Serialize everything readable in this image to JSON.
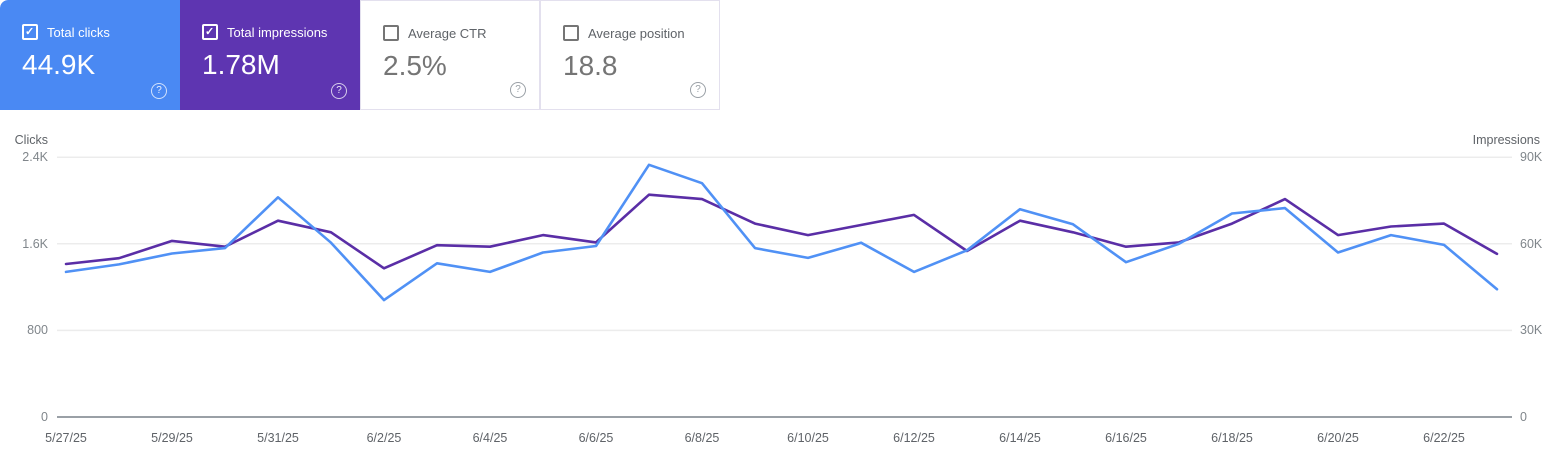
{
  "cards": [
    {
      "label": "Total clicks",
      "value": "44.9K",
      "checked": true,
      "bg_color": "#4a89f3",
      "text_color": "#ffffff"
    },
    {
      "label": "Total impressions",
      "value": "1.78M",
      "checked": true,
      "bg_color": "#5e35b1",
      "text_color": "#ffffff"
    },
    {
      "label": "Average CTR",
      "value": "2.5%",
      "checked": false,
      "bg_color": "#ffffff",
      "text_color": "#757575"
    },
    {
      "label": "Average position",
      "value": "18.8",
      "checked": false,
      "bg_color": "#ffffff",
      "text_color": "#757575"
    }
  ],
  "chart_data": {
    "type": "line",
    "x": [
      "5/27/25",
      "5/28/25",
      "5/29/25",
      "5/30/25",
      "5/31/25",
      "6/1/25",
      "6/2/25",
      "6/3/25",
      "6/4/25",
      "6/5/25",
      "6/6/25",
      "6/7/25",
      "6/8/25",
      "6/9/25",
      "6/10/25",
      "6/11/25",
      "6/12/25",
      "6/13/25",
      "6/14/25",
      "6/15/25",
      "6/16/25",
      "6/17/25",
      "6/18/25",
      "6/19/25",
      "6/20/25",
      "6/21/25",
      "6/22/25",
      "6/23/25"
    ],
    "x_tick_every": 2,
    "series": [
      {
        "name": "Clicks",
        "axis": "left",
        "color": "#5091f5",
        "values": [
          1340,
          1410,
          1510,
          1560,
          2030,
          1610,
          1080,
          1420,
          1340,
          1520,
          1580,
          2330,
          2160,
          1560,
          1470,
          1610,
          1340,
          1540,
          1920,
          1780,
          1430,
          1600,
          1880,
          1930,
          1520,
          1680,
          1590,
          1180
        ]
      },
      {
        "name": "Impressions",
        "axis": "right",
        "color": "#5a2ea6",
        "values": [
          53000,
          55000,
          61000,
          59000,
          68000,
          64000,
          51500,
          59500,
          59000,
          63000,
          60500,
          77000,
          75500,
          67000,
          63000,
          66500,
          70000,
          57500,
          68000,
          64000,
          59000,
          60500,
          67000,
          75500,
          63000,
          66000,
          67000,
          56500
        ]
      }
    ],
    "left_axis": {
      "title": "Clicks",
      "ticks": [
        "0",
        "800",
        "1.6K",
        "2.4K"
      ],
      "max": 2400
    },
    "right_axis": {
      "title": "Impressions",
      "ticks": [
        "0",
        "30K",
        "60K",
        "90K"
      ],
      "max": 90000
    },
    "grid": true,
    "legend_position": "none"
  },
  "colors": {
    "grid_line": "#ececec",
    "axis_line": "#9aa0a6",
    "tick_text": "#80868b",
    "label_text": "#5f6368",
    "card_border": "#e3e0ee"
  }
}
